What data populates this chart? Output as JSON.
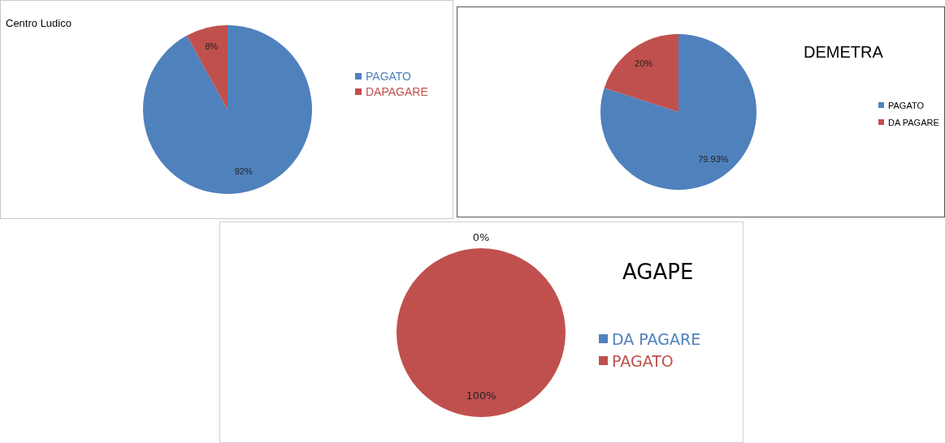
{
  "chart_data": [
    {
      "type": "pie",
      "title": "Centro Ludico",
      "categories": [
        "PAGATO",
        "DAPAGARE"
      ],
      "values": [
        92,
        8
      ],
      "colors": [
        "#4f81bd",
        "#c0504d"
      ],
      "value_labels": [
        "92%",
        "8%"
      ],
      "legend": "right"
    },
    {
      "type": "pie",
      "title": "DEMETRA",
      "categories": [
        "PAGATO",
        "DA PAGARE"
      ],
      "values": [
        79.93,
        20
      ],
      "colors": [
        "#4f81bd",
        "#c0504d"
      ],
      "value_labels": [
        "79.93%",
        "20%"
      ],
      "legend": "right"
    },
    {
      "type": "pie",
      "title": "AGAPE",
      "categories": [
        "DA PAGARE",
        "PAGATO"
      ],
      "values": [
        0,
        100
      ],
      "colors": [
        "#4f81bd",
        "#c0504d"
      ],
      "value_labels": [
        "0%",
        "100%"
      ],
      "legend": "right"
    }
  ]
}
